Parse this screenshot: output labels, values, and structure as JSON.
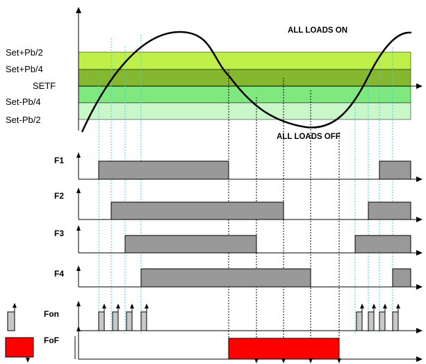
{
  "bands": {
    "set_plus_pb2": "Set+Pb/2",
    "set_plus_pb4": "Set+Pb/4",
    "setf": "SETF",
    "set_minus_pb4": "Set-Pb/4",
    "set_minus_pb2": "Set-Pb/2"
  },
  "annotations": {
    "all_loads_on": "ALL LOADS ON",
    "all_loads_off": "ALL LOADS OFF"
  },
  "rows": {
    "f1": "F1",
    "f2": "F2",
    "f3": "F3",
    "f4": "F4",
    "fon": "Fon",
    "fof": "FoF"
  },
  "colors": {
    "band_outer_top": "#bff04a",
    "band_inner_top": "#86b82f",
    "band_inner_bottom": "#7fe87f",
    "band_outer_bottom": "#c9f7c9",
    "load_bar": "#999999",
    "fof_bar": "#ff0000",
    "guide": "#33d6e8"
  }
}
